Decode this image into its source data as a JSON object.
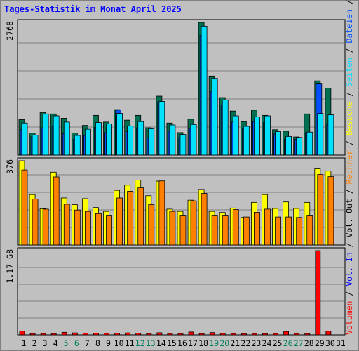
{
  "title": "Tages-Statistik im Monat April 2025",
  "colors": {
    "background": "#c0c0c0",
    "plot_bg": "#c0c0c0",
    "gridline": "#808080",
    "anfragen": "#006e50",
    "dateien": "#0050ff",
    "seiten": "#00e0ff",
    "besuche": "#ffff00",
    "rechner": "#ff8000",
    "volumen": "#ff0000",
    "weekday_label": "#000000",
    "weekend_label": "#008060"
  },
  "chart_data": [
    {
      "type": "bar",
      "panel": "top",
      "y_tick_label": "2768",
      "ymax": 2768,
      "categories": [
        "1",
        "2",
        "3",
        "4",
        "5",
        "6",
        "7",
        "8",
        "9",
        "10",
        "11",
        "12",
        "13",
        "14",
        "15",
        "16",
        "17",
        "18",
        "19",
        "20",
        "21",
        "22",
        "23",
        "24",
        "25",
        "26",
        "27",
        "28",
        "29",
        "30",
        "31"
      ],
      "series": [
        {
          "name": "Anfragen",
          "values": [
            740,
            460,
            890,
            860,
            770,
            460,
            620,
            830,
            690,
            950,
            730,
            830,
            570,
            1230,
            670,
            470,
            750,
            2768,
            1650,
            1200,
            920,
            700,
            940,
            830,
            530,
            500,
            380,
            860,
            1550,
            1400,
            0
          ]
        },
        {
          "name": "Dateien",
          "values": [
            530,
            380,
            570,
            600,
            450,
            330,
            410,
            580,
            470,
            940,
            490,
            570,
            360,
            1100,
            500,
            360,
            560,
            2500,
            1330,
            1050,
            690,
            550,
            700,
            680,
            440,
            330,
            330,
            470,
            1500,
            640,
            0
          ]
        },
        {
          "name": "Seiten",
          "values": [
            670,
            420,
            860,
            820,
            690,
            410,
            540,
            680,
            650,
            870,
            610,
            700,
            550,
            1120,
            630,
            430,
            640,
            2690,
            1600,
            1150,
            820,
            600,
            800,
            820,
            490,
            390,
            370,
            480,
            870,
            840,
            0
          ]
        }
      ]
    },
    {
      "type": "bar",
      "panel": "middle",
      "y_tick_label": "376",
      "ymax": 376,
      "categories": [
        "1",
        "2",
        "3",
        "4",
        "5",
        "6",
        "7",
        "8",
        "9",
        "10",
        "11",
        "12",
        "13",
        "14",
        "15",
        "16",
        "17",
        "18",
        "19",
        "20",
        "21",
        "22",
        "23",
        "24",
        "25",
        "26",
        "27",
        "28",
        "29",
        "30",
        "31"
      ],
      "series": [
        {
          "name": "Besuche",
          "values": [
            376,
            225,
            162,
            325,
            210,
            180,
            207,
            167,
            150,
            244,
            267,
            290,
            220,
            285,
            160,
            150,
            200,
            248,
            150,
            145,
            165,
            123,
            190,
            225,
            163,
            192,
            163,
            190,
            340,
            330,
            0
          ]
        },
        {
          "name": "Rechner",
          "values": [
            335,
            205,
            160,
            304,
            182,
            156,
            150,
            140,
            133,
            210,
            240,
            255,
            180,
            286,
            150,
            133,
            197,
            230,
            133,
            133,
            158,
            125,
            146,
            160,
            125,
            125,
            123,
            133,
            315,
            305,
            0
          ]
        }
      ]
    },
    {
      "type": "bar",
      "panel": "bottom",
      "y_tick_label": "1.17 GB",
      "ymax": 1.17,
      "categories": [
        "1",
        "2",
        "3",
        "4",
        "5",
        "6",
        "7",
        "8",
        "9",
        "10",
        "11",
        "12",
        "13",
        "14",
        "15",
        "16",
        "17",
        "18",
        "19",
        "20",
        "21",
        "22",
        "23",
        "24",
        "25",
        "26",
        "27",
        "28",
        "29",
        "30",
        "31"
      ],
      "series": [
        {
          "name": "Volumen",
          "values": [
            0.052,
            0.012,
            0.012,
            0.012,
            0.036,
            0.028,
            0.024,
            0.024,
            0.022,
            0.024,
            0.028,
            0.024,
            0.016,
            0.03,
            0.02,
            0.02,
            0.04,
            0.014,
            0.032,
            0.022,
            0.018,
            0.014,
            0.018,
            0.018,
            0.016,
            0.048,
            0.014,
            0.016,
            1.17,
            0.052,
            0
          ]
        }
      ]
    }
  ],
  "weekend_days": [
    "5",
    "6",
    "12",
    "13",
    "19",
    "20",
    "26",
    "27"
  ],
  "right_legend": [
    {
      "text": "Volumen",
      "color": "#ff0000"
    },
    {
      "text": " / ",
      "color": "#000000"
    },
    {
      "text": "Vol. In",
      "color": "#0000ff"
    },
    {
      "text": " / ",
      "color": "#000000"
    },
    {
      "text": "Vol. Out",
      "color": "#000000"
    },
    {
      "text": " / ",
      "color": "#000000"
    },
    {
      "text": "Rechner",
      "color": "#ff8000"
    },
    {
      "text": " / ",
      "color": "#000000"
    },
    {
      "text": "Besuche",
      "color": "#ffff00"
    },
    {
      "text": " / ",
      "color": "#000000"
    },
    {
      "text": "Seiten",
      "color": "#00e0ff"
    },
    {
      "text": " / ",
      "color": "#000000"
    },
    {
      "text": "Dateien",
      "color": "#0050ff"
    },
    {
      "text": " / ",
      "color": "#000000"
    },
    {
      "text": "Anfragen",
      "color": "#006e50"
    }
  ]
}
